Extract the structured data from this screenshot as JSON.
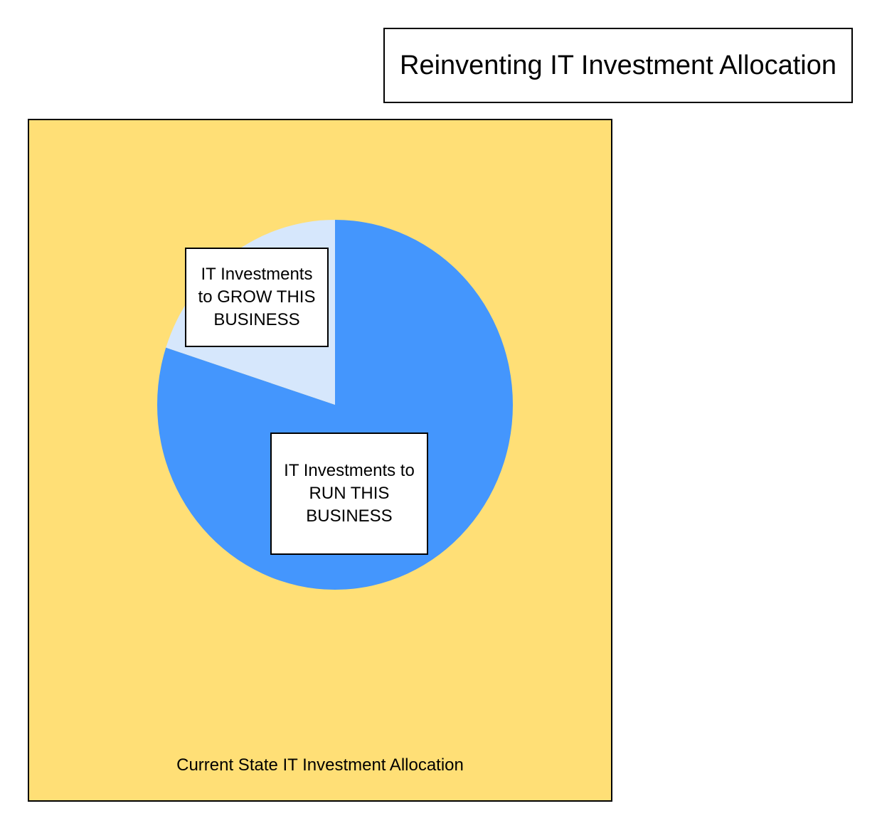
{
  "title": "Reinventing IT Investment Allocation",
  "panel_caption": "Current State IT Investment Allocation",
  "colors": {
    "background": "#ffffff",
    "panel": "#ffdf76",
    "run": "#4496fd",
    "grow": "#d6e7fc",
    "border": "#000000"
  },
  "chart_data": {
    "type": "pie",
    "title": "",
    "slices": [
      {
        "label_lines": [
          "IT Investments to",
          "RUN THIS",
          "BUSINESS"
        ],
        "value": 80,
        "color": "#4496fd"
      },
      {
        "label_lines": [
          "IT Investments",
          "to GROW THIS",
          "BUSINESS"
        ],
        "value": 20,
        "color": "#d6e7fc"
      }
    ]
  }
}
